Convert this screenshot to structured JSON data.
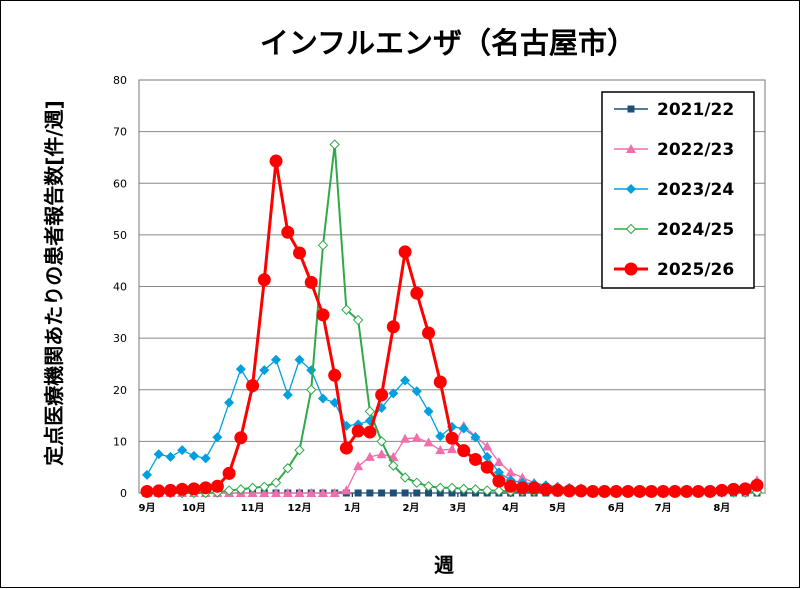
{
  "chart_data": {
    "type": "line",
    "title": "インフルエンザ（名古屋市）",
    "xlabel": "週",
    "ylabel": "定点医療機関あたりの患者報告数[件/週]",
    "ylim": [
      0,
      80
    ],
    "yticks": [
      "0",
      "10",
      "20",
      "30",
      "40",
      "50",
      "60",
      "70",
      "80"
    ],
    "n_weeks": 53,
    "month_ticks": [
      {
        "label": "9月",
        "week": 0
      },
      {
        "label": "10月",
        "week": 4
      },
      {
        "label": "11月",
        "week": 9
      },
      {
        "label": "12月",
        "week": 13
      },
      {
        "label": "1月",
        "week": 17.5
      },
      {
        "label": "2月",
        "week": 22.5
      },
      {
        "label": "3月",
        "week": 26.5
      },
      {
        "label": "4月",
        "week": 31
      },
      {
        "label": "5月",
        "week": 35
      },
      {
        "label": "6月",
        "week": 40
      },
      {
        "label": "7月",
        "week": 44
      },
      {
        "label": "8月",
        "week": 49
      }
    ],
    "grid": true,
    "legend_position": "top-right",
    "series": [
      {
        "name": "2021/22",
        "color": "#1f4e79",
        "marker": "square",
        "values": [
          0,
          0,
          0,
          0,
          0,
          0,
          0,
          0,
          0,
          0,
          0,
          0,
          0,
          0,
          0,
          0,
          0,
          0,
          0,
          0,
          0,
          0,
          0,
          0,
          0,
          0,
          0,
          0,
          0,
          0,
          0,
          0,
          0,
          0,
          0,
          0,
          0,
          0,
          0,
          0,
          0,
          0,
          0,
          0,
          0,
          0,
          0,
          0,
          0,
          0,
          0,
          0,
          0
        ]
      },
      {
        "name": "2022/23",
        "color": "#f06eaa",
        "marker": "triangle",
        "values": [
          0,
          0,
          0,
          0,
          0,
          0,
          0,
          0,
          0,
          0,
          0,
          0,
          0,
          0,
          0,
          0,
          0,
          0.5,
          5.2,
          7,
          7.5,
          7,
          10.5,
          10.7,
          9.8,
          8.3,
          8.5,
          13,
          11,
          9,
          6,
          4,
          3,
          2,
          1.5,
          1.2,
          1,
          1,
          0.5,
          0.5,
          0.5,
          0.5,
          0.3,
          0.3,
          0.3,
          0.3,
          0.3,
          0.3,
          0.3,
          0.5,
          0.5,
          1,
          2.5
        ]
      },
      {
        "name": "2023/24",
        "color": "#00a0e0",
        "marker": "diamond",
        "values": [
          3.5,
          7.5,
          7,
          8.3,
          7.2,
          6.7,
          10.8,
          17.5,
          24,
          20.3,
          23.8,
          25.8,
          19,
          25.8,
          23.8,
          18.3,
          17.5,
          13,
          13.3,
          14,
          16.5,
          19.3,
          21.8,
          19.7,
          15.8,
          11,
          12.8,
          12.5,
          10.8,
          7,
          4,
          2.5,
          2,
          1.8,
          1.5,
          1.2,
          1,
          0.8,
          0.5,
          0.5,
          0.4,
          0.3,
          0.3,
          0.3,
          0.3,
          0.3,
          0.3,
          0.3,
          0.3,
          0.3,
          0.3,
          0.5,
          1.5
        ]
      },
      {
        "name": "2024/25",
        "color": "#2eaa4a",
        "marker": "diamond-open",
        "values": [
          0,
          0,
          0,
          0,
          0,
          0,
          0.1,
          0.5,
          0.7,
          1,
          1.2,
          2,
          4.8,
          8.3,
          20,
          48,
          67.5,
          35.5,
          33.5,
          15.8,
          10,
          5.3,
          3,
          2,
          1.3,
          1,
          1,
          0.8,
          0.7,
          0.5,
          0.4,
          0.3,
          0.3,
          0.3,
          0.2,
          0.2,
          0.2,
          0.2,
          0.2,
          0.1,
          0.1,
          0.1,
          0.1,
          0.1,
          0.1,
          0.1,
          0.1,
          0.1,
          0.1,
          0.1,
          0.1,
          0.1,
          0.2
        ]
      },
      {
        "name": "2025/26",
        "color": "#ff0000",
        "marker": "circle",
        "values": [
          0.3,
          0.4,
          0.5,
          0.7,
          0.8,
          1,
          1.3,
          3.8,
          10.7,
          20.8,
          41.3,
          64.3,
          50.5,
          46.5,
          40.8,
          34.5,
          22.8,
          8.7,
          12,
          11.8,
          19,
          32.2,
          46.7,
          38.7,
          31,
          21.5,
          10.6,
          8.2,
          6.5,
          5,
          2.3,
          1.3,
          1,
          1,
          0.7,
          0.5,
          0.4,
          0.4,
          0.3,
          0.3,
          0.3,
          0.3,
          0.3,
          0.3,
          0.3,
          0.3,
          0.3,
          0.3,
          0.3,
          0.5,
          0.7,
          0.8,
          1.5
        ]
      }
    ]
  }
}
